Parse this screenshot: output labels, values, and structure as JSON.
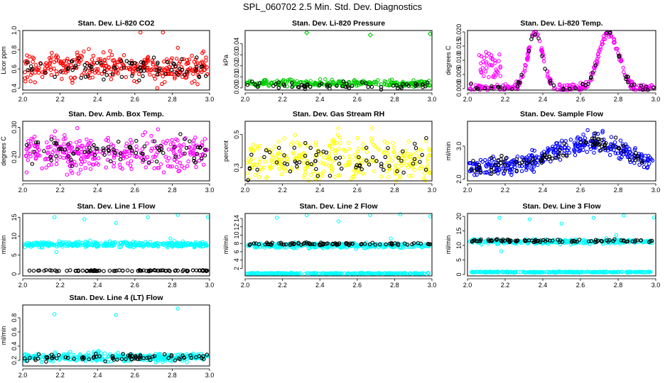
{
  "title": "SPL_060702  2.5 Min. Std. Dev. Diagnostics",
  "colors": {
    "red": "#ff0000",
    "green": "#00cc00",
    "magenta": "#ff00ff",
    "yellow": "#ffff00",
    "blue": "#0000ff",
    "cyan": "#00ffff",
    "black": "#000000"
  },
  "chart_data": [
    {
      "type": "scatter",
      "title": "Stan. Dev. Li-820 CO2",
      "ylabel": "Licor ppm",
      "xlim": [
        2.0,
        3.0
      ],
      "xticks": [
        "2.0",
        "2.2",
        "2.4",
        "2.6",
        "2.8",
        "3.0"
      ],
      "ylim": [
        0.38,
        1.0
      ],
      "yticks": [
        0.4,
        0.6,
        0.8,
        1.0
      ],
      "ytick_labels": [
        "0.4",
        "0.6",
        "0.8",
        "1.0"
      ],
      "series": [
        {
          "name": "primary",
          "color": "red",
          "pattern": "band",
          "center": 0.62,
          "spread": 0.07,
          "n": 320
        },
        {
          "name": "secondary",
          "color": "black",
          "pattern": "band",
          "center": 0.61,
          "spread": 0.06,
          "n": 80
        },
        {
          "name": "outliers",
          "color": "red",
          "points": [
            [
              2.72,
              0.4
            ],
            [
              2.63,
              0.98
            ],
            [
              2.75,
              0.98
            ],
            [
              2.83,
              0.82
            ]
          ]
        }
      ]
    },
    {
      "type": "scatter",
      "title": "Stan. Dev. Li-820 Pressure",
      "ylabel": "kPa",
      "xlim": [
        2.0,
        3.0
      ],
      "xticks": [
        "2.0",
        "2.2",
        "2.4",
        "2.6",
        "2.8",
        "3.0"
      ],
      "ylim": [
        -0.002,
        0.052
      ],
      "yticks": [
        0.0,
        0.01,
        0.02,
        0.03,
        0.04
      ],
      "ytick_labels": [
        "0.00",
        "0.01",
        "0.02",
        "0.03",
        "0.04"
      ],
      "series": [
        {
          "name": "primary",
          "color": "green",
          "pattern": "band",
          "center": 0.004,
          "spread": 0.0015,
          "n": 260
        },
        {
          "name": "secondary",
          "color": "black",
          "pattern": "band",
          "center": 0.002,
          "spread": 0.0015,
          "n": 60
        },
        {
          "name": "outliers",
          "color": "green",
          "points": [
            [
              2.33,
              0.05
            ],
            [
              2.67,
              0.048
            ],
            [
              2.99,
              0.049
            ]
          ]
        }
      ]
    },
    {
      "type": "scatter",
      "title": "Stan. Dev. Li-820 Temp.",
      "ylabel": "degrees C",
      "xlim": [
        2.0,
        3.0
      ],
      "xticks": [
        "2.0",
        "2.2",
        "2.4",
        "2.6",
        "2.8",
        "3.0"
      ],
      "ylim": [
        -0.0005,
        0.0205
      ],
      "yticks": [
        0.0,
        0.005,
        0.01,
        0.015,
        0.02
      ],
      "ytick_labels": [
        "0.000",
        "0.005",
        "0.010",
        "0.015",
        "0.020"
      ],
      "series": [
        {
          "name": "primary",
          "color": "magenta",
          "pattern": "humps",
          "n": 320
        },
        {
          "name": "secondary",
          "color": "black",
          "pattern": "humps",
          "n": 70
        },
        {
          "name": "cluster",
          "color": "magenta",
          "pattern": "cluster",
          "n": 40
        }
      ]
    },
    {
      "type": "scatter",
      "title": "Stan. Dev. Amb. Box Temp.",
      "ylabel": "degrees C",
      "xlim": [
        2.0,
        3.0
      ],
      "xticks": [
        "2.0",
        "2.2",
        "2.4",
        "2.6",
        "2.8",
        "3.0"
      ],
      "ylim": [
        0.12,
        0.32
      ],
      "yticks": [
        0.2,
        0.3
      ],
      "ytick_labels": [
        "0.20",
        "0.30"
      ],
      "series": [
        {
          "name": "primary",
          "color": "magenta",
          "pattern": "band",
          "center": 0.215,
          "spread": 0.028,
          "n": 320
        },
        {
          "name": "secondary",
          "color": "black",
          "pattern": "band",
          "center": 0.215,
          "spread": 0.025,
          "n": 80
        }
      ]
    },
    {
      "type": "scatter",
      "title": "Stan. Dev. Gas Stream RH",
      "ylabel": "percent",
      "xlim": [
        2.0,
        3.0
      ],
      "xticks": [
        "2.0",
        "2.2",
        "2.4",
        "2.6",
        "2.8",
        "3.0"
      ],
      "ylim": [
        0.22,
        0.58
      ],
      "yticks": [
        0.3,
        0.5
      ],
      "ytick_labels": [
        "0.3",
        "0.5"
      ],
      "series": [
        {
          "name": "primary",
          "color": "yellow",
          "pattern": "band",
          "center": 0.34,
          "spread": 0.07,
          "n": 320
        },
        {
          "name": "secondary",
          "color": "black",
          "pattern": "band",
          "center": 0.34,
          "spread": 0.06,
          "n": 70
        }
      ]
    },
    {
      "type": "scatter",
      "title": "Stan. Dev. Sample Flow",
      "ylabel": "ml/min",
      "xlim": [
        2.0,
        3.0
      ],
      "xticks": [
        "2.0",
        "2.2",
        "2.4",
        "2.6",
        "2.8",
        "3.0"
      ],
      "ylim": [
        1.95,
        3.75
      ],
      "yticks": [
        2.0,
        3.0
      ],
      "ytick_labels": [
        "2.0",
        "3.0"
      ],
      "series": [
        {
          "name": "primary",
          "color": "blue",
          "pattern": "arch",
          "n": 340
        },
        {
          "name": "secondary",
          "color": "black",
          "pattern": "arch",
          "n": 90
        }
      ]
    },
    {
      "type": "scatter",
      "title": "Stan. Dev. Line 1 Flow",
      "ylabel": "ml/min",
      "xlim": [
        2.0,
        3.0
      ],
      "xticks": [
        "2.0",
        "2.2",
        "2.4",
        "2.6",
        "2.8",
        "3.0"
      ],
      "ylim": [
        -0.5,
        16
      ],
      "yticks": [
        0,
        5,
        10,
        15
      ],
      "ytick_labels": [
        "0",
        "5",
        "10",
        "15"
      ],
      "series": [
        {
          "name": "primary",
          "color": "cyan",
          "pattern": "band",
          "center": 7.8,
          "spread": 0.35,
          "n": 360
        },
        {
          "name": "secondary",
          "color": "black",
          "pattern": "band",
          "center": 0.9,
          "spread": 0.08,
          "n": 90
        },
        {
          "name": "outliers",
          "color": "cyan",
          "points": [
            [
              2.17,
              15.0
            ],
            [
              2.33,
              14.5
            ],
            [
              2.5,
              13.5
            ],
            [
              2.67,
              15.0
            ],
            [
              2.83,
              15.6
            ],
            [
              2.99,
              15.0
            ],
            [
              2.18,
              5.8
            ],
            [
              2.79,
              9.4
            ]
          ]
        }
      ]
    },
    {
      "type": "scatter",
      "title": "Stan. Dev. Line 2 Flow",
      "ylabel": "ml/min",
      "xlim": [
        2.0,
        3.0
      ],
      "xticks": [
        "2.0",
        "2.2",
        "2.4",
        "2.6",
        "2.8",
        "3.0"
      ],
      "ylim": [
        0.2,
        15.2
      ],
      "yticks": [
        2,
        4,
        6,
        8,
        10,
        12,
        14
      ],
      "ytick_labels": [
        "2",
        "4",
        "6",
        "8",
        "10",
        "12",
        "14"
      ],
      "series": [
        {
          "name": "primary",
          "color": "cyan",
          "pattern": "band",
          "center": 7.5,
          "spread": 0.3,
          "n": 300
        },
        {
          "name": "secondary",
          "color": "black",
          "pattern": "band",
          "center": 7.9,
          "spread": 0.15,
          "n": 90
        },
        {
          "name": "baseline",
          "color": "cyan",
          "pattern": "band",
          "center": 0.8,
          "spread": 0.06,
          "n": 260
        },
        {
          "name": "outliers",
          "color": "cyan",
          "points": [
            [
              2.17,
              14.2
            ],
            [
              2.33,
              14.8
            ],
            [
              2.5,
              13.3
            ],
            [
              2.67,
              14.8
            ],
            [
              2.83,
              15.0
            ],
            [
              2.99,
              14.5
            ],
            [
              2.78,
              9.2
            ]
          ]
        }
      ]
    },
    {
      "type": "scatter",
      "title": "Stan. Dev. Line 3 Flow",
      "ylabel": "ml/min",
      "xlim": [
        2.0,
        3.0
      ],
      "xticks": [
        "2.0",
        "2.2",
        "2.4",
        "2.6",
        "2.8",
        "3.0"
      ],
      "ylim": [
        -0.5,
        21
      ],
      "yticks": [
        0,
        5,
        10,
        15,
        20
      ],
      "ytick_labels": [
        "0",
        "5",
        "10",
        "15",
        "20"
      ],
      "series": [
        {
          "name": "primary",
          "color": "cyan",
          "pattern": "band",
          "center": 11.3,
          "spread": 0.4,
          "n": 260
        },
        {
          "name": "secondary",
          "color": "black",
          "pattern": "band",
          "center": 11.6,
          "spread": 0.25,
          "n": 90
        },
        {
          "name": "baseline",
          "color": "cyan",
          "pattern": "band",
          "center": 0.8,
          "spread": 0.1,
          "n": 260
        },
        {
          "name": "outliers",
          "color": "cyan",
          "points": [
            [
              2.17,
              19.5
            ],
            [
              2.33,
              19.0
            ],
            [
              2.5,
              17.5
            ],
            [
              2.67,
              19.5
            ],
            [
              2.83,
              20.3
            ],
            [
              2.99,
              19.6
            ],
            [
              2.18,
              8.0
            ],
            [
              2.79,
              13.5
            ]
          ]
        }
      ]
    },
    {
      "type": "scatter",
      "title": "Stan. Dev. Line 4 (LT) Flow",
      "ylabel": "ml/min",
      "xlim": [
        2.0,
        3.0
      ],
      "xticks": [
        "2.0",
        "2.2",
        "2.4",
        "2.6",
        "2.8",
        "3.0"
      ],
      "ylim": [
        0.12,
        0.98
      ],
      "yticks": [
        0.2,
        0.4,
        0.6,
        0.8
      ],
      "ytick_labels": [
        "0.2",
        "0.4",
        "0.6",
        "0.8"
      ],
      "series": [
        {
          "name": "primary",
          "color": "cyan",
          "pattern": "band",
          "center": 0.245,
          "spread": 0.03,
          "n": 320
        },
        {
          "name": "secondary",
          "color": "black",
          "pattern": "band",
          "center": 0.24,
          "spread": 0.025,
          "n": 80
        },
        {
          "name": "outliers",
          "color": "cyan",
          "points": [
            [
              2.17,
              0.85
            ],
            [
              2.5,
              0.84
            ],
            [
              2.83,
              0.93
            ]
          ]
        }
      ]
    }
  ]
}
